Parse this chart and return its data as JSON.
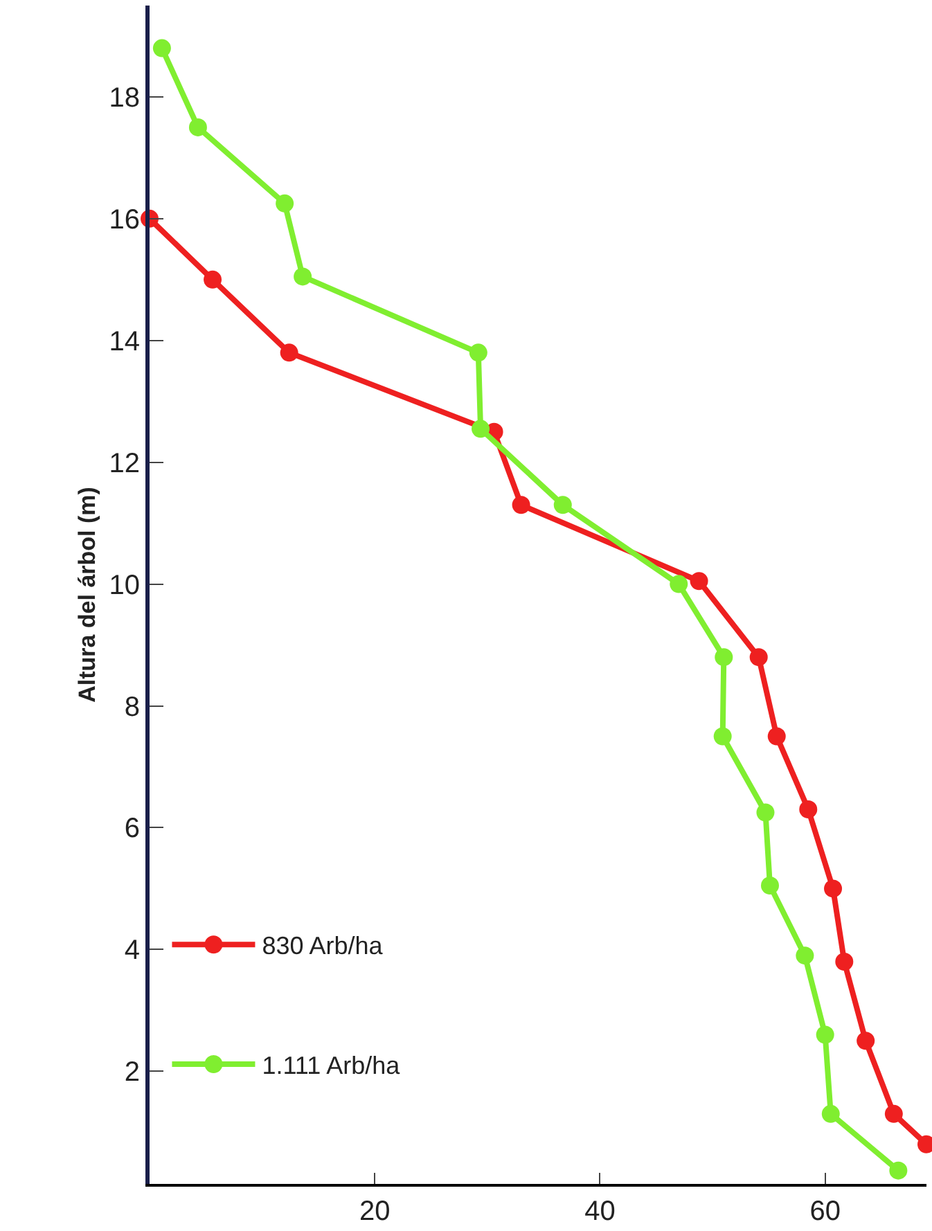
{
  "chart_data": {
    "type": "line",
    "ylabel": "Altura del árbol (m)",
    "xlim": [
      0,
      69
    ],
    "xticks": [
      20,
      40,
      60
    ],
    "ylim": [
      0.15,
      19.5
    ],
    "yticks": [
      2,
      4,
      6,
      8,
      10,
      12,
      14,
      16,
      18
    ],
    "legend": "bottom left",
    "marker": "circle",
    "line_style": "solid",
    "series": [
      {
        "name": "830 Arb/ha",
        "color": "#ee2020",
        "x": [
          0,
          5.6,
          12.4,
          30.6,
          33.0,
          48.8,
          54.1,
          55.7,
          58.5,
          60.7,
          61.7,
          63.6,
          66.1,
          69
        ],
        "values": [
          16.0,
          15.0,
          13.8,
          12.5,
          11.3,
          10.05,
          8.8,
          7.5,
          6.3,
          5.0,
          3.8,
          2.5,
          1.3,
          0.8
        ]
      },
      {
        "name": "1.111 Arb/ha",
        "color": "#80ee30",
        "x": [
          1.1,
          4.3,
          12.0,
          13.6,
          29.2,
          29.4,
          36.7,
          47.0,
          51.0,
          50.9,
          54.7,
          55.1,
          58.2,
          60.0,
          60.5,
          66.5
        ],
        "values": [
          18.8,
          17.5,
          16.25,
          15.05,
          13.8,
          12.55,
          11.3,
          10.0,
          8.8,
          7.5,
          6.25,
          5.05,
          3.9,
          2.6,
          1.3,
          0.37
        ]
      }
    ]
  }
}
